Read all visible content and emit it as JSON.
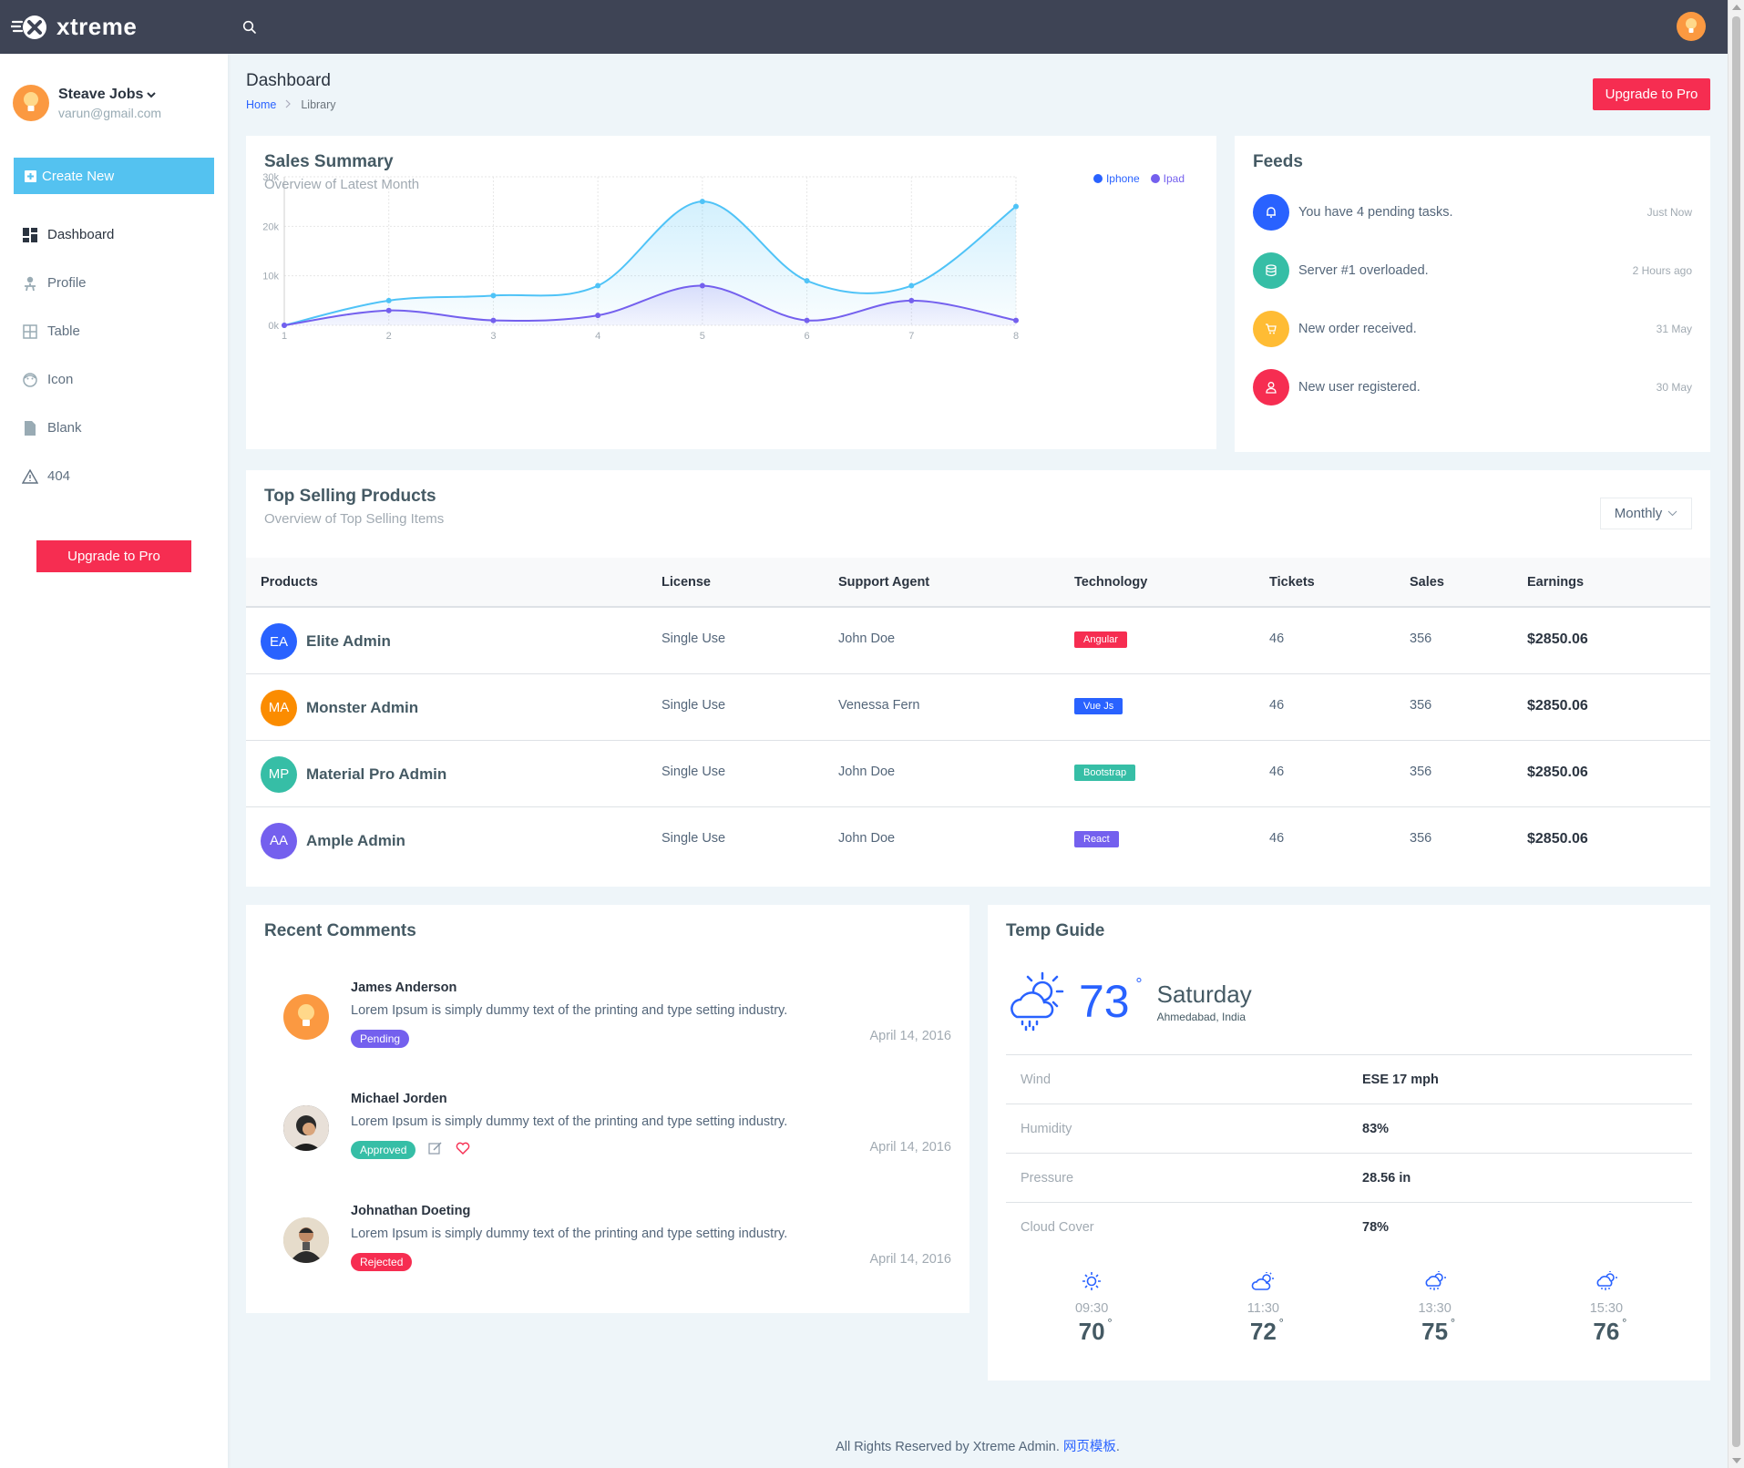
{
  "brand": {
    "name": "xtreme"
  },
  "user": {
    "name": "Steave Jobs",
    "email": "varun@gmail.com"
  },
  "sidebar": {
    "create_label": "Create New",
    "items": [
      {
        "label": "Dashboard",
        "icon": "dashboard-icon"
      },
      {
        "label": "Profile",
        "icon": "profile-icon"
      },
      {
        "label": "Table",
        "icon": "table-icon"
      },
      {
        "label": "Icon",
        "icon": "emoji-icon"
      },
      {
        "label": "Blank",
        "icon": "file-icon"
      },
      {
        "label": "404",
        "icon": "alert-icon"
      }
    ],
    "upgrade_label": "Upgrade to Pro"
  },
  "page": {
    "title": "Dashboard",
    "breadcrumb": [
      "Home",
      "Library"
    ],
    "upgrade_label": "Upgrade to Pro"
  },
  "sales": {
    "title": "Sales Summary",
    "subtitle": "Overview of Latest Month",
    "legend": [
      "Iphone",
      "Ipad"
    ]
  },
  "chart_data": {
    "type": "area",
    "x": [
      1,
      2,
      3,
      4,
      5,
      6,
      7,
      8
    ],
    "ylim": [
      0,
      30000
    ],
    "yticks": [
      "0k",
      "10k",
      "20k",
      "30k"
    ],
    "grid": true,
    "legend_position": "top-right",
    "series": [
      {
        "name": "Iphone",
        "color": "#4fc3f7",
        "values": [
          0,
          5000,
          6000,
          8000,
          25000,
          9000,
          8000,
          24000
        ]
      },
      {
        "name": "Ipad",
        "color": "#7460ee",
        "values": [
          0,
          3000,
          1000,
          2000,
          8000,
          1000,
          5000,
          1000
        ]
      }
    ]
  },
  "feeds": {
    "title": "Feeds",
    "items": [
      {
        "text": "You have 4 pending tasks.",
        "time": "Just Now",
        "color": "#2962ff",
        "icon": "bell-icon"
      },
      {
        "text": "Server #1 overloaded.",
        "time": "2 Hours ago",
        "color": "#36bea6",
        "icon": "server-icon"
      },
      {
        "text": "New order received.",
        "time": "31 May",
        "color": "#ffbc34",
        "icon": "cart-icon"
      },
      {
        "text": "New user registered.",
        "time": "30 May",
        "color": "#f62d51",
        "icon": "user-icon"
      }
    ]
  },
  "products": {
    "title": "Top Selling Products",
    "subtitle": "Overview of Top Selling Items",
    "filter": "Monthly",
    "columns": [
      "Products",
      "License",
      "Support Agent",
      "Technology",
      "Tickets",
      "Sales",
      "Earnings"
    ],
    "rows": [
      {
        "initials": "EA",
        "avatar_color": "#2962ff",
        "name": "Elite Admin",
        "license": "Single Use",
        "agent": "John Doe",
        "tech": "Angular",
        "tech_color": "#f62d51",
        "tickets": "46",
        "sales": "356",
        "earnings": "$2850.06"
      },
      {
        "initials": "MA",
        "avatar_color": "#fb8c00",
        "name": "Monster Admin",
        "license": "Single Use",
        "agent": "Venessa Fern",
        "tech": "Vue Js",
        "tech_color": "#2962ff",
        "tickets": "46",
        "sales": "356",
        "earnings": "$2850.06"
      },
      {
        "initials": "MP",
        "avatar_color": "#36bea6",
        "name": "Material Pro Admin",
        "license": "Single Use",
        "agent": "John Doe",
        "tech": "Bootstrap",
        "tech_color": "#36bea6",
        "tickets": "46",
        "sales": "356",
        "earnings": "$2850.06"
      },
      {
        "initials": "AA",
        "avatar_color": "#7460ee",
        "name": "Ample Admin",
        "license": "Single Use",
        "agent": "John Doe",
        "tech": "React",
        "tech_color": "#7460ee",
        "tickets": "46",
        "sales": "356",
        "earnings": "$2850.06"
      }
    ]
  },
  "comments": {
    "title": "Recent Comments",
    "items": [
      {
        "name": "James Anderson",
        "text": "Lorem Ipsum is simply dummy text of the printing and type setting industry.",
        "status": "Pending",
        "status_color": "#7460ee",
        "date": "April 14, 2016"
      },
      {
        "name": "Michael Jorden",
        "text": "Lorem Ipsum is simply dummy text of the printing and type setting industry.",
        "status": "Approved",
        "status_color": "#36bea6",
        "date": "April 14, 2016"
      },
      {
        "name": "Johnathan Doeting",
        "text": "Lorem Ipsum is simply dummy text of the printing and type setting industry.",
        "status": "Rejected",
        "status_color": "#f62d51",
        "date": "April 14, 2016"
      }
    ]
  },
  "temp": {
    "title": "Temp Guide",
    "current": "73",
    "degree": "°",
    "day": "Saturday",
    "location": "Ahmedabad, India",
    "details": [
      {
        "label": "Wind",
        "value": "ESE 17 mph"
      },
      {
        "label": "Humidity",
        "value": "83%"
      },
      {
        "label": "Pressure",
        "value": "28.56 in"
      },
      {
        "label": "Cloud Cover",
        "value": "78%"
      }
    ],
    "forecast": [
      {
        "time": "09:30",
        "value": "70",
        "icon": "sun-icon"
      },
      {
        "time": "11:30",
        "value": "72",
        "icon": "cloudy-day-icon"
      },
      {
        "time": "13:30",
        "value": "75",
        "icon": "rain-cloud-icon"
      },
      {
        "time": "15:30",
        "value": "76",
        "icon": "rain-cloud-icon"
      }
    ]
  },
  "footer": {
    "text": "All Rights Reserved by Xtreme Admin. ",
    "link": "网页模板",
    "end": "."
  }
}
